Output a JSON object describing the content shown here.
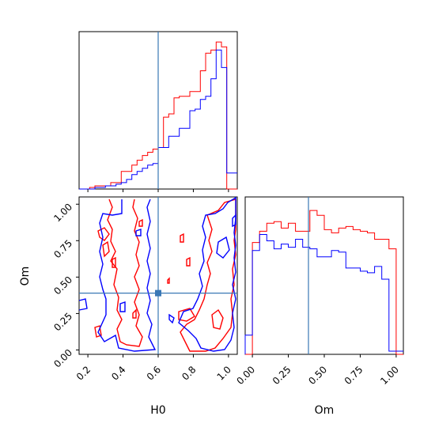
{
  "chart_data": [
    {
      "type": "histogram",
      "panel": "H0 marginal",
      "x_range": [
        0.15,
        1.05
      ],
      "bins": [
        0.15,
        0.18,
        0.21,
        0.24,
        0.27,
        0.3,
        0.33,
        0.36,
        0.39,
        0.42,
        0.45,
        0.48,
        0.51,
        0.54,
        0.57,
        0.6,
        0.63,
        0.66,
        0.69,
        0.72,
        0.75,
        0.78,
        0.81,
        0.84,
        0.87,
        0.9,
        0.93,
        0.96,
        0.99,
        1.02,
        1.05
      ],
      "series": [
        {
          "color": "#ff0000",
          "values": [
            0,
            0,
            0.01,
            0.02,
            0.02,
            0.02,
            0.04,
            0.04,
            0.11,
            0.11,
            0.15,
            0.18,
            0.21,
            0.23,
            0.25,
            0.26,
            0.45,
            0.47,
            0.57,
            0.58,
            0.58,
            0.61,
            0.61,
            0.74,
            0.85,
            0.87,
            0.92,
            0.89,
            0.0,
            0.0
          ]
        },
        {
          "color": "#0000ff",
          "values": [
            0,
            0,
            0,
            0.01,
            0.01,
            0.02,
            0.02,
            0.03,
            0.04,
            0.06,
            0.09,
            0.11,
            0.13,
            0.15,
            0.16,
            0.26,
            0.26,
            0.33,
            0.33,
            0.38,
            0.38,
            0.49,
            0.5,
            0.56,
            0.58,
            0.69,
            0.87,
            0.76,
            0.1,
            0.1
          ]
        }
      ],
      "truth_line_x": 0.6
    },
    {
      "type": "contour",
      "panel": "H0 vs Om",
      "xlabel": "H0",
      "ylabel": "Om",
      "x_range": [
        0.15,
        1.05
      ],
      "y_range": [
        -0.03,
        1.05
      ],
      "x_ticks": [
        "0.2",
        "0.4",
        "0.6",
        "0.8",
        "1.0"
      ],
      "y_ticks": [
        "0.00",
        "0.25",
        "0.50",
        "0.75",
        "1.00"
      ],
      "truth_point": {
        "x": 0.6,
        "y": 0.39
      }
    },
    {
      "type": "histogram",
      "panel": "Om marginal",
      "xlabel": "Om",
      "x_range": [
        -0.05,
        1.05
      ],
      "x_ticks": [
        "0.00",
        "0.25",
        "0.50",
        "0.75",
        "1.00"
      ],
      "bins": [
        -0.05,
        0.0,
        0.05,
        0.1,
        0.15,
        0.2,
        0.25,
        0.3,
        0.35,
        0.4,
        0.45,
        0.5,
        0.55,
        0.6,
        0.65,
        0.7,
        0.75,
        0.8,
        0.85,
        0.9,
        0.95,
        1.0,
        1.05
      ],
      "series": [
        {
          "color": "#ff0000",
          "values": [
            0,
            0.7,
            0.77,
            0.82,
            0.83,
            0.79,
            0.82,
            0.77,
            0.77,
            0.9,
            0.87,
            0.78,
            0.76,
            0.79,
            0.8,
            0.78,
            0.77,
            0.76,
            0.72,
            0.72,
            0.66,
            0.0
          ]
        },
        {
          "color": "#0000ff",
          "values": [
            0.12,
            0.65,
            0.75,
            0.71,
            0.66,
            0.69,
            0.67,
            0.72,
            0.67,
            0.66,
            0.61,
            0.61,
            0.65,
            0.64,
            0.54,
            0.54,
            0.52,
            0.51,
            0.55,
            0.47,
            0.02,
            0.02
          ]
        }
      ],
      "truth_line_x": 0.39
    }
  ]
}
